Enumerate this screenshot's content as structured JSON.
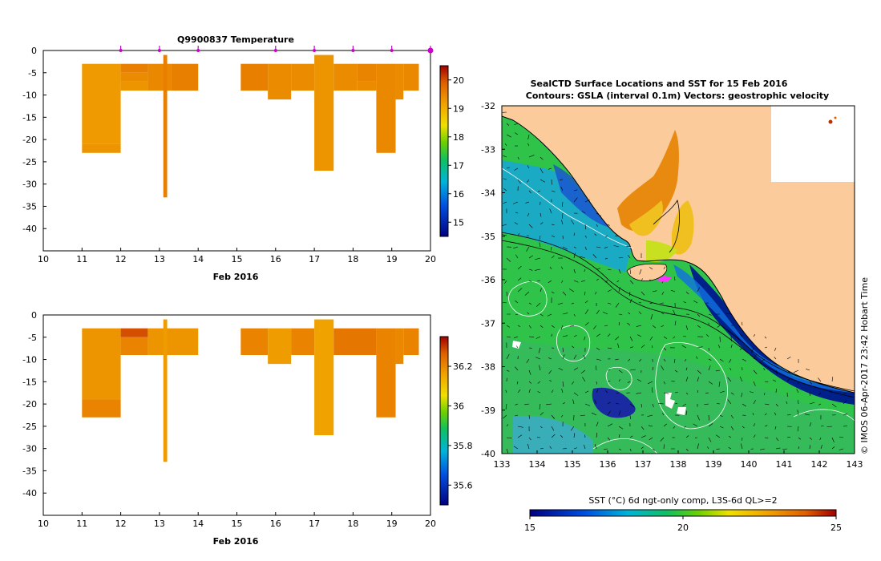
{
  "chart_data": [
    {
      "type": "heatmap",
      "title": "Q9900837  Temperature",
      "xlabel": "Feb 2016",
      "xlim": [
        10,
        20
      ],
      "ylim": [
        -45,
        0
      ],
      "xticks": [
        10,
        11,
        12,
        13,
        14,
        15,
        16,
        17,
        18,
        19,
        20
      ],
      "yticks": [
        0,
        -5,
        -10,
        -15,
        -20,
        -25,
        -30,
        -35,
        -40
      ],
      "profile_days": [
        12,
        13,
        14,
        16,
        17,
        18,
        19,
        20
      ],
      "colorbar": {
        "min": 14.5,
        "max": 20.5,
        "ticks": [
          15,
          16,
          17,
          18,
          19,
          20
        ]
      },
      "cells": [
        {
          "x0": 11,
          "x1": 12,
          "y0": -3,
          "y1": -21,
          "v": 19.25
        },
        {
          "x0": 11,
          "x1": 12,
          "y0": -21,
          "y1": -23,
          "v": 19.3
        },
        {
          "x0": 12,
          "x1": 12.7,
          "y0": -3,
          "y1": -5,
          "v": 19.55
        },
        {
          "x0": 12,
          "x1": 12.7,
          "y0": -5,
          "y1": -7,
          "v": 19.4
        },
        {
          "x0": 12,
          "x1": 12.7,
          "y0": -7,
          "y1": -9,
          "v": 19.3
        },
        {
          "x0": 12.7,
          "x1": 13.3,
          "y0": -3,
          "y1": -9,
          "v": 19.45
        },
        {
          "x0": 13.1,
          "x1": 13.2,
          "y0": -1,
          "y1": -33,
          "v": 19.55
        },
        {
          "x0": 13.3,
          "x1": 14,
          "y0": -3,
          "y1": -9,
          "v": 19.55
        },
        {
          "x0": 15.1,
          "x1": 15.8,
          "y0": -3,
          "y1": -9,
          "v": 19.55
        },
        {
          "x0": 15.8,
          "x1": 16.4,
          "y0": -3,
          "y1": -11,
          "v": 19.4
        },
        {
          "x0": 16.4,
          "x1": 17,
          "y0": -3,
          "y1": -9,
          "v": 19.4
        },
        {
          "x0": 17,
          "x1": 17.5,
          "y0": -1,
          "y1": -27,
          "v": 19.3
        },
        {
          "x0": 17.5,
          "x1": 18.1,
          "y0": -3,
          "y1": -9,
          "v": 19.4
        },
        {
          "x0": 18.1,
          "x1": 18.6,
          "y0": -3,
          "y1": -7,
          "v": 19.5
        },
        {
          "x0": 18.1,
          "x1": 18.6,
          "y0": -7,
          "y1": -9,
          "v": 19.4
        },
        {
          "x0": 18.6,
          "x1": 19.1,
          "y0": -3,
          "y1": -23,
          "v": 19.45
        },
        {
          "x0": 19.1,
          "x1": 19.3,
          "y0": -3,
          "y1": -11,
          "v": 19.4
        },
        {
          "x0": 19.3,
          "x1": 19.7,
          "y0": -3,
          "y1": -9,
          "v": 19.45
        }
      ]
    },
    {
      "type": "heatmap",
      "title": "",
      "xlabel": "Feb 2016",
      "xlim": [
        10,
        20
      ],
      "ylim": [
        -45,
        0
      ],
      "xticks": [
        10,
        11,
        12,
        13,
        14,
        15,
        16,
        17,
        18,
        19,
        20
      ],
      "yticks": [
        0,
        -5,
        -10,
        -15,
        -20,
        -25,
        -30,
        -35,
        -40
      ],
      "colorbar": {
        "min": 35.5,
        "max": 36.35,
        "ticks": [
          35.6,
          35.8,
          36,
          36.2
        ]
      },
      "cells": [
        {
          "x0": 11,
          "x1": 12,
          "y0": -3,
          "y1": -19,
          "v": 36.18
        },
        {
          "x0": 11,
          "x1": 12,
          "y0": -19,
          "y1": -23,
          "v": 36.21
        },
        {
          "x0": 12,
          "x1": 12.7,
          "y0": -3,
          "y1": -5,
          "v": 36.28
        },
        {
          "x0": 12,
          "x1": 12.7,
          "y0": -5,
          "y1": -9,
          "v": 36.21
        },
        {
          "x0": 12.7,
          "x1": 14,
          "y0": -3,
          "y1": -9,
          "v": 36.18
        },
        {
          "x0": 13.1,
          "x1": 13.2,
          "y0": -1,
          "y1": -33,
          "v": 36.17
        },
        {
          "x0": 15.1,
          "x1": 15.8,
          "y0": -3,
          "y1": -9,
          "v": 36.21
        },
        {
          "x0": 15.8,
          "x1": 16.4,
          "y0": -3,
          "y1": -11,
          "v": 36.17
        },
        {
          "x0": 16.4,
          "x1": 17,
          "y0": -3,
          "y1": -9,
          "v": 36.21
        },
        {
          "x0": 17,
          "x1": 17.5,
          "y0": -1,
          "y1": -27,
          "v": 36.16
        },
        {
          "x0": 17.5,
          "x1": 18.6,
          "y0": -3,
          "y1": -9,
          "v": 36.23
        },
        {
          "x0": 18.6,
          "x1": 19.1,
          "y0": -3,
          "y1": -23,
          "v": 36.21
        },
        {
          "x0": 19.1,
          "x1": 19.3,
          "y0": -3,
          "y1": -11,
          "v": 36.2
        },
        {
          "x0": 19.3,
          "x1": 19.7,
          "y0": -3,
          "y1": -9,
          "v": 36.21
        }
      ]
    },
    {
      "type": "heatmap",
      "title": "SealCTD Surface Locations and SST for 15 Feb 2016",
      "subtitle": "Contours: GSLA (interval 0.1m) Vectors: geostrophic velocity",
      "xlim": [
        133,
        143
      ],
      "ylim": [
        -40,
        -32
      ],
      "xticks": [
        133,
        134,
        135,
        136,
        137,
        138,
        139,
        140,
        141,
        142,
        143
      ],
      "yticks": [
        -32,
        -33,
        -34,
        -35,
        -36,
        -37,
        -38,
        -39,
        -40
      ],
      "colorbar_label": "SST (°C) 6d ngt-only comp, L3S-6d QL>=2",
      "colorbar": {
        "min": 15,
        "max": 25,
        "ticks": [
          15,
          20,
          25
        ]
      },
      "credit": "© IMOS 06-Apr-2017 23:42 Hobart Time",
      "tag_locations": [
        {
          "lon": 137.8,
          "lat": -36.0
        },
        {
          "lon": 142.5,
          "lat": -32.4
        }
      ],
      "colors": {
        "land": "#fccb9c",
        "ocean": "#2fc34a",
        "tag": "#ff33ff"
      }
    }
  ]
}
